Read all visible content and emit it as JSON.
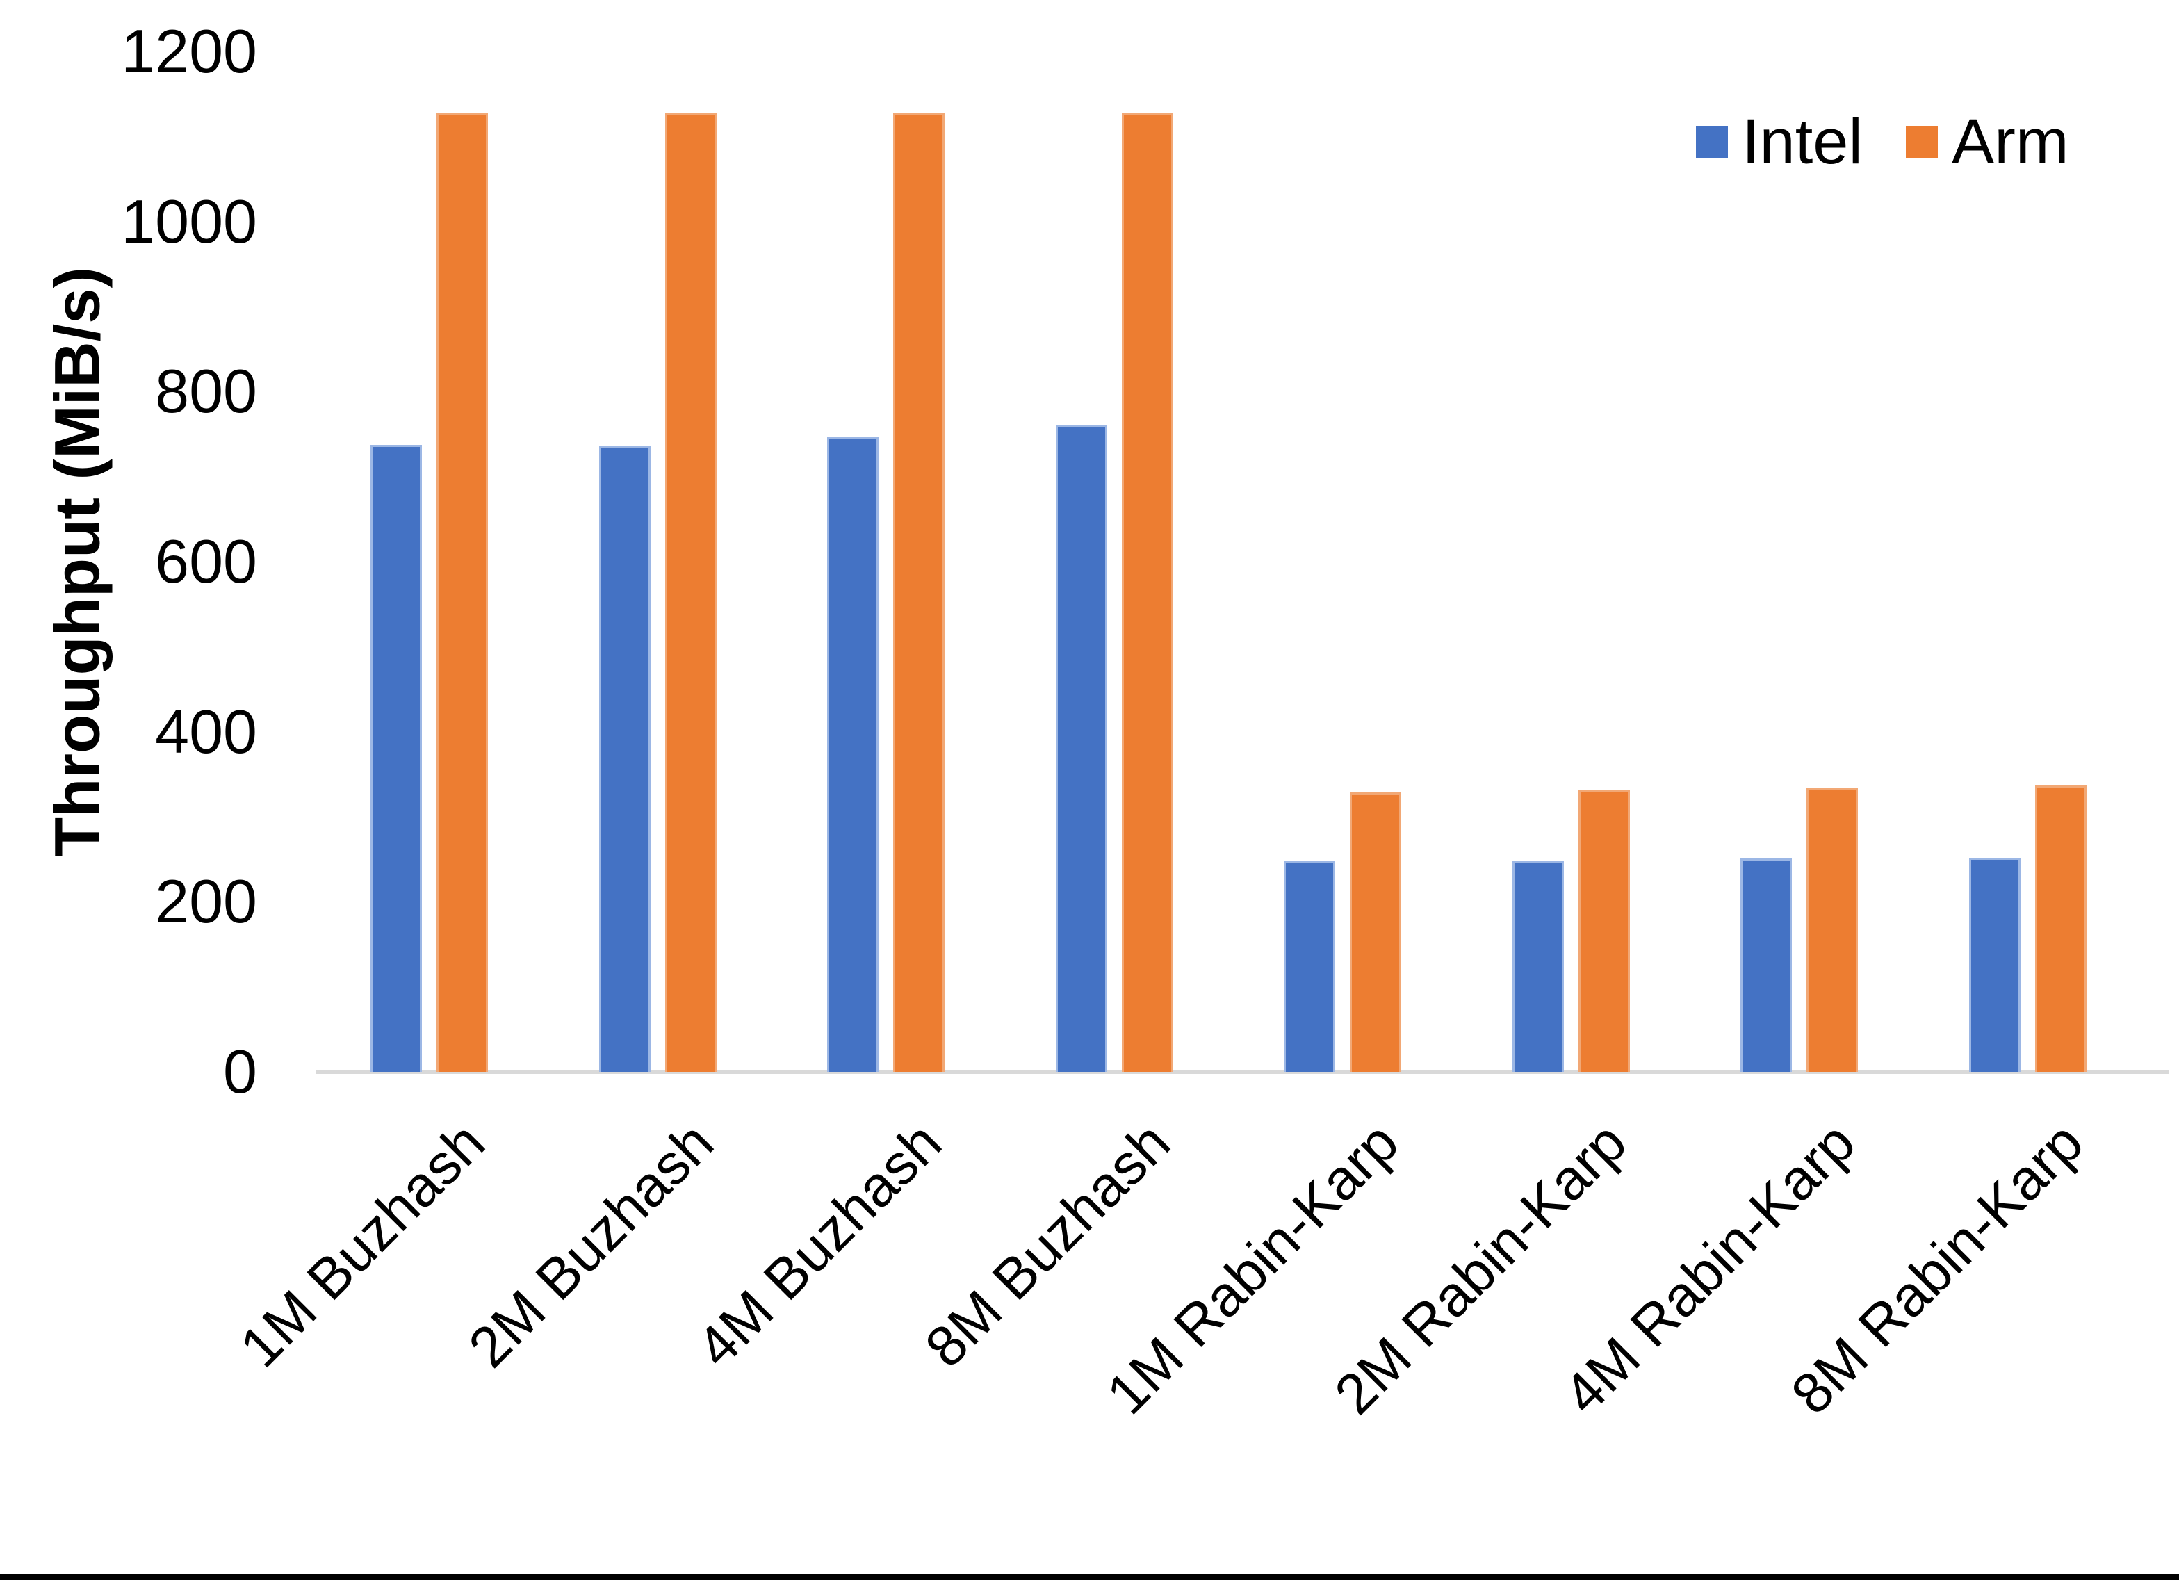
{
  "chart_data": {
    "type": "bar",
    "title": "",
    "categories": [
      "1M Buzhash",
      "2M Buzhash",
      "4M Buzhash",
      "8M Buzhash",
      "1M Rabin-Karp",
      "2M Rabin-Karp",
      "4M Rabin-Karp",
      "8M Rabin-Karp"
    ],
    "series": [
      {
        "name": "Intel",
        "color": "#4472C4",
        "values": [
          737,
          736,
          746,
          761,
          248,
          248,
          251,
          252
        ]
      },
      {
        "name": "Arm",
        "color": "#ED7D31",
        "values": [
          1128,
          1128,
          1128,
          1128,
          329,
          331,
          334,
          337
        ]
      }
    ],
    "xlabel": "",
    "ylabel": "Throughput (MiB/s)",
    "ylim": [
      0,
      1200
    ],
    "yticks": [
      0,
      200,
      400,
      600,
      800,
      1000,
      1200
    ],
    "grid": false,
    "legend_position": "top-right",
    "axis_line_color": "#D9D9D9",
    "text_color": "#000000"
  }
}
